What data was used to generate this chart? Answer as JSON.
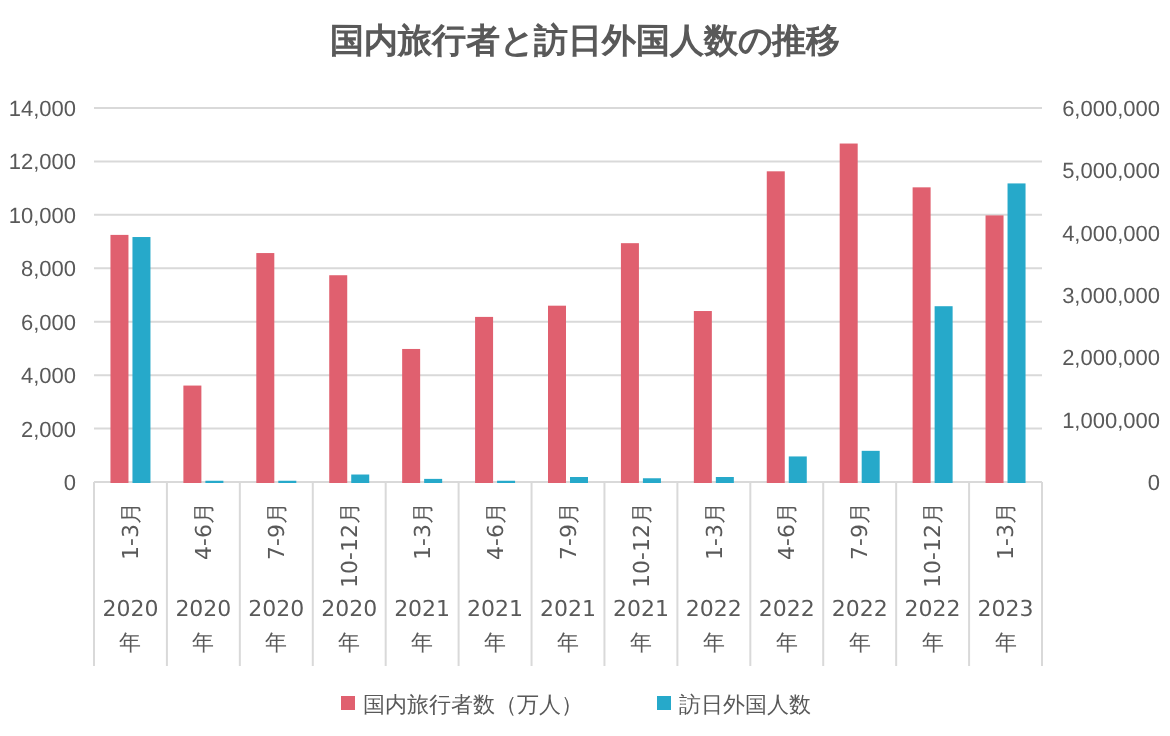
{
  "chart_data": {
    "type": "bar",
    "title": "国内旅行者と訪日外国人数の推移",
    "categories": [
      "1-3月",
      "4-6月",
      "7-9月",
      "10-12月",
      "1-3月",
      "4-6月",
      "7-9月",
      "10-12月",
      "1-3月",
      "4-6月",
      "7-9月",
      "10-12月",
      "1-3月"
    ],
    "annotations": [
      "2020年",
      "2020年",
      "2020年",
      "2020年",
      "2021年",
      "2021年",
      "2021年",
      "2021年",
      "2022年",
      "2022年",
      "2022年",
      "2022年",
      "2023年"
    ],
    "series": [
      {
        "name": "国内旅行者数（万人）",
        "color": "#e0606f",
        "values": [
          9250,
          3610,
          8570,
          7740,
          4980,
          6180,
          6600,
          8940,
          6400,
          11630,
          12670,
          11030,
          9980
        ]
      },
      {
        "name": "訪日外国人数",
        "color": "#26a9ca",
        "axis": "y2",
        "values": [
          3930000,
          20000,
          20000,
          120000,
          50000,
          20000,
          80000,
          60000,
          80000,
          410000,
          500000,
          2820000,
          4790000
        ]
      }
    ],
    "ylim": [
      0,
      14000
    ],
    "yticks": [
      0,
      {
        "value": 2000,
        "label": "2,000"
      },
      {
        "value": 4000,
        "label": "4,000"
      },
      {
        "value": 6000,
        "label": "6,000"
      },
      {
        "value": 8000,
        "label": "8,000"
      },
      {
        "value": 10000,
        "label": "10,000"
      },
      {
        "value": 12000,
        "label": "12,000"
      },
      {
        "value": 14000,
        "label": "14,000"
      }
    ],
    "y2lim": [
      0,
      6000000
    ],
    "y2ticks": [
      0,
      {
        "value": 1000000,
        "label": "1,000,000"
      },
      {
        "value": 2000000,
        "label": "2,000,000"
      },
      {
        "value": 3000000,
        "label": "3,000,000"
      },
      {
        "value": 4000000,
        "label": "4,000,000"
      },
      {
        "value": 5000000,
        "label": "5,000,000"
      },
      {
        "value": 6000000,
        "label": "6,000,000"
      }
    ],
    "grid": "y",
    "legend": "bottom"
  }
}
